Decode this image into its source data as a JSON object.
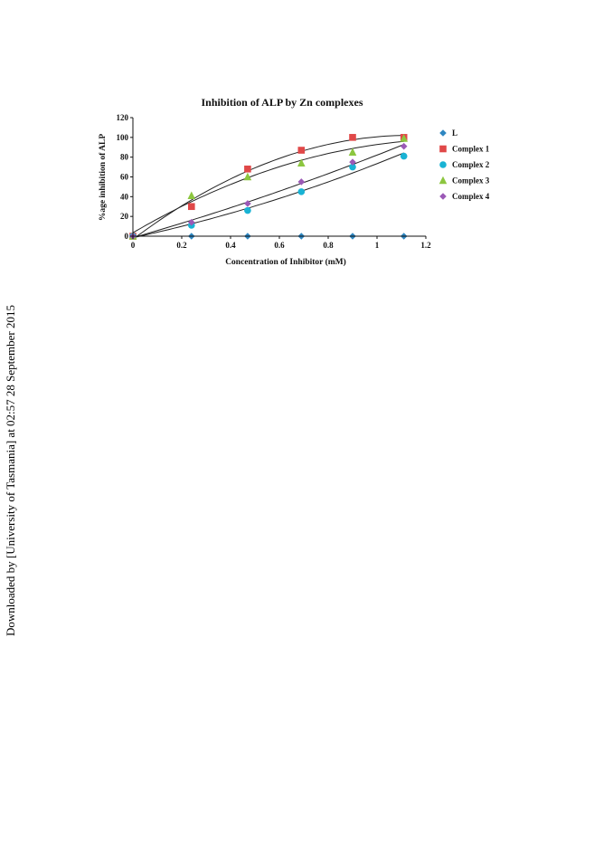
{
  "watermark": "Downloaded by [University of Tasmania] at 02:57 28 September 2015",
  "chart_data": {
    "type": "scatter",
    "title": "Inhibition of ALP by Zn complexes",
    "xlabel": "Concentration of Inhibitor (mM)",
    "ylabel": "%age inhibition of ALP",
    "xlim": [
      0,
      1.2
    ],
    "ylim": [
      0,
      120
    ],
    "xticks": [
      "0",
      "0.2",
      "0.4",
      "0.6",
      "0.8",
      "1",
      "1.2"
    ],
    "yticks": [
      "0",
      "20",
      "40",
      "60",
      "80",
      "100",
      "120"
    ],
    "legend_position": "right",
    "grid": false,
    "trendlines": "polynomial",
    "series": [
      {
        "name": "L",
        "marker": "diamond",
        "color": "#2e86c1",
        "x": [
          0,
          0.24,
          0.47,
          0.69,
          0.9,
          1.11
        ],
        "y": [
          0,
          0,
          0,
          0,
          0,
          0
        ]
      },
      {
        "name": "Complex 1",
        "marker": "square",
        "color": "#e04848",
        "x": [
          0,
          0.24,
          0.47,
          0.69,
          0.9,
          1.11
        ],
        "y": [
          0,
          30,
          68,
          87,
          100,
          100
        ]
      },
      {
        "name": "Complex 2",
        "marker": "circle",
        "color": "#19b3d4",
        "x": [
          0,
          0.24,
          0.47,
          0.69,
          0.9,
          1.11
        ],
        "y": [
          0,
          11,
          26,
          45,
          70,
          81
        ]
      },
      {
        "name": "Complex 3",
        "marker": "triangle",
        "color": "#8cc63f",
        "x": [
          0,
          0.24,
          0.47,
          0.69,
          0.9,
          1.11
        ],
        "y": [
          0,
          41,
          60,
          74,
          85,
          99
        ]
      },
      {
        "name": "Complex 4",
        "marker": "diamond",
        "color": "#9b59b6",
        "x": [
          0,
          0.24,
          0.47,
          0.69,
          0.9,
          1.11
        ],
        "y": [
          0,
          14,
          33,
          55,
          75,
          91
        ]
      }
    ]
  }
}
